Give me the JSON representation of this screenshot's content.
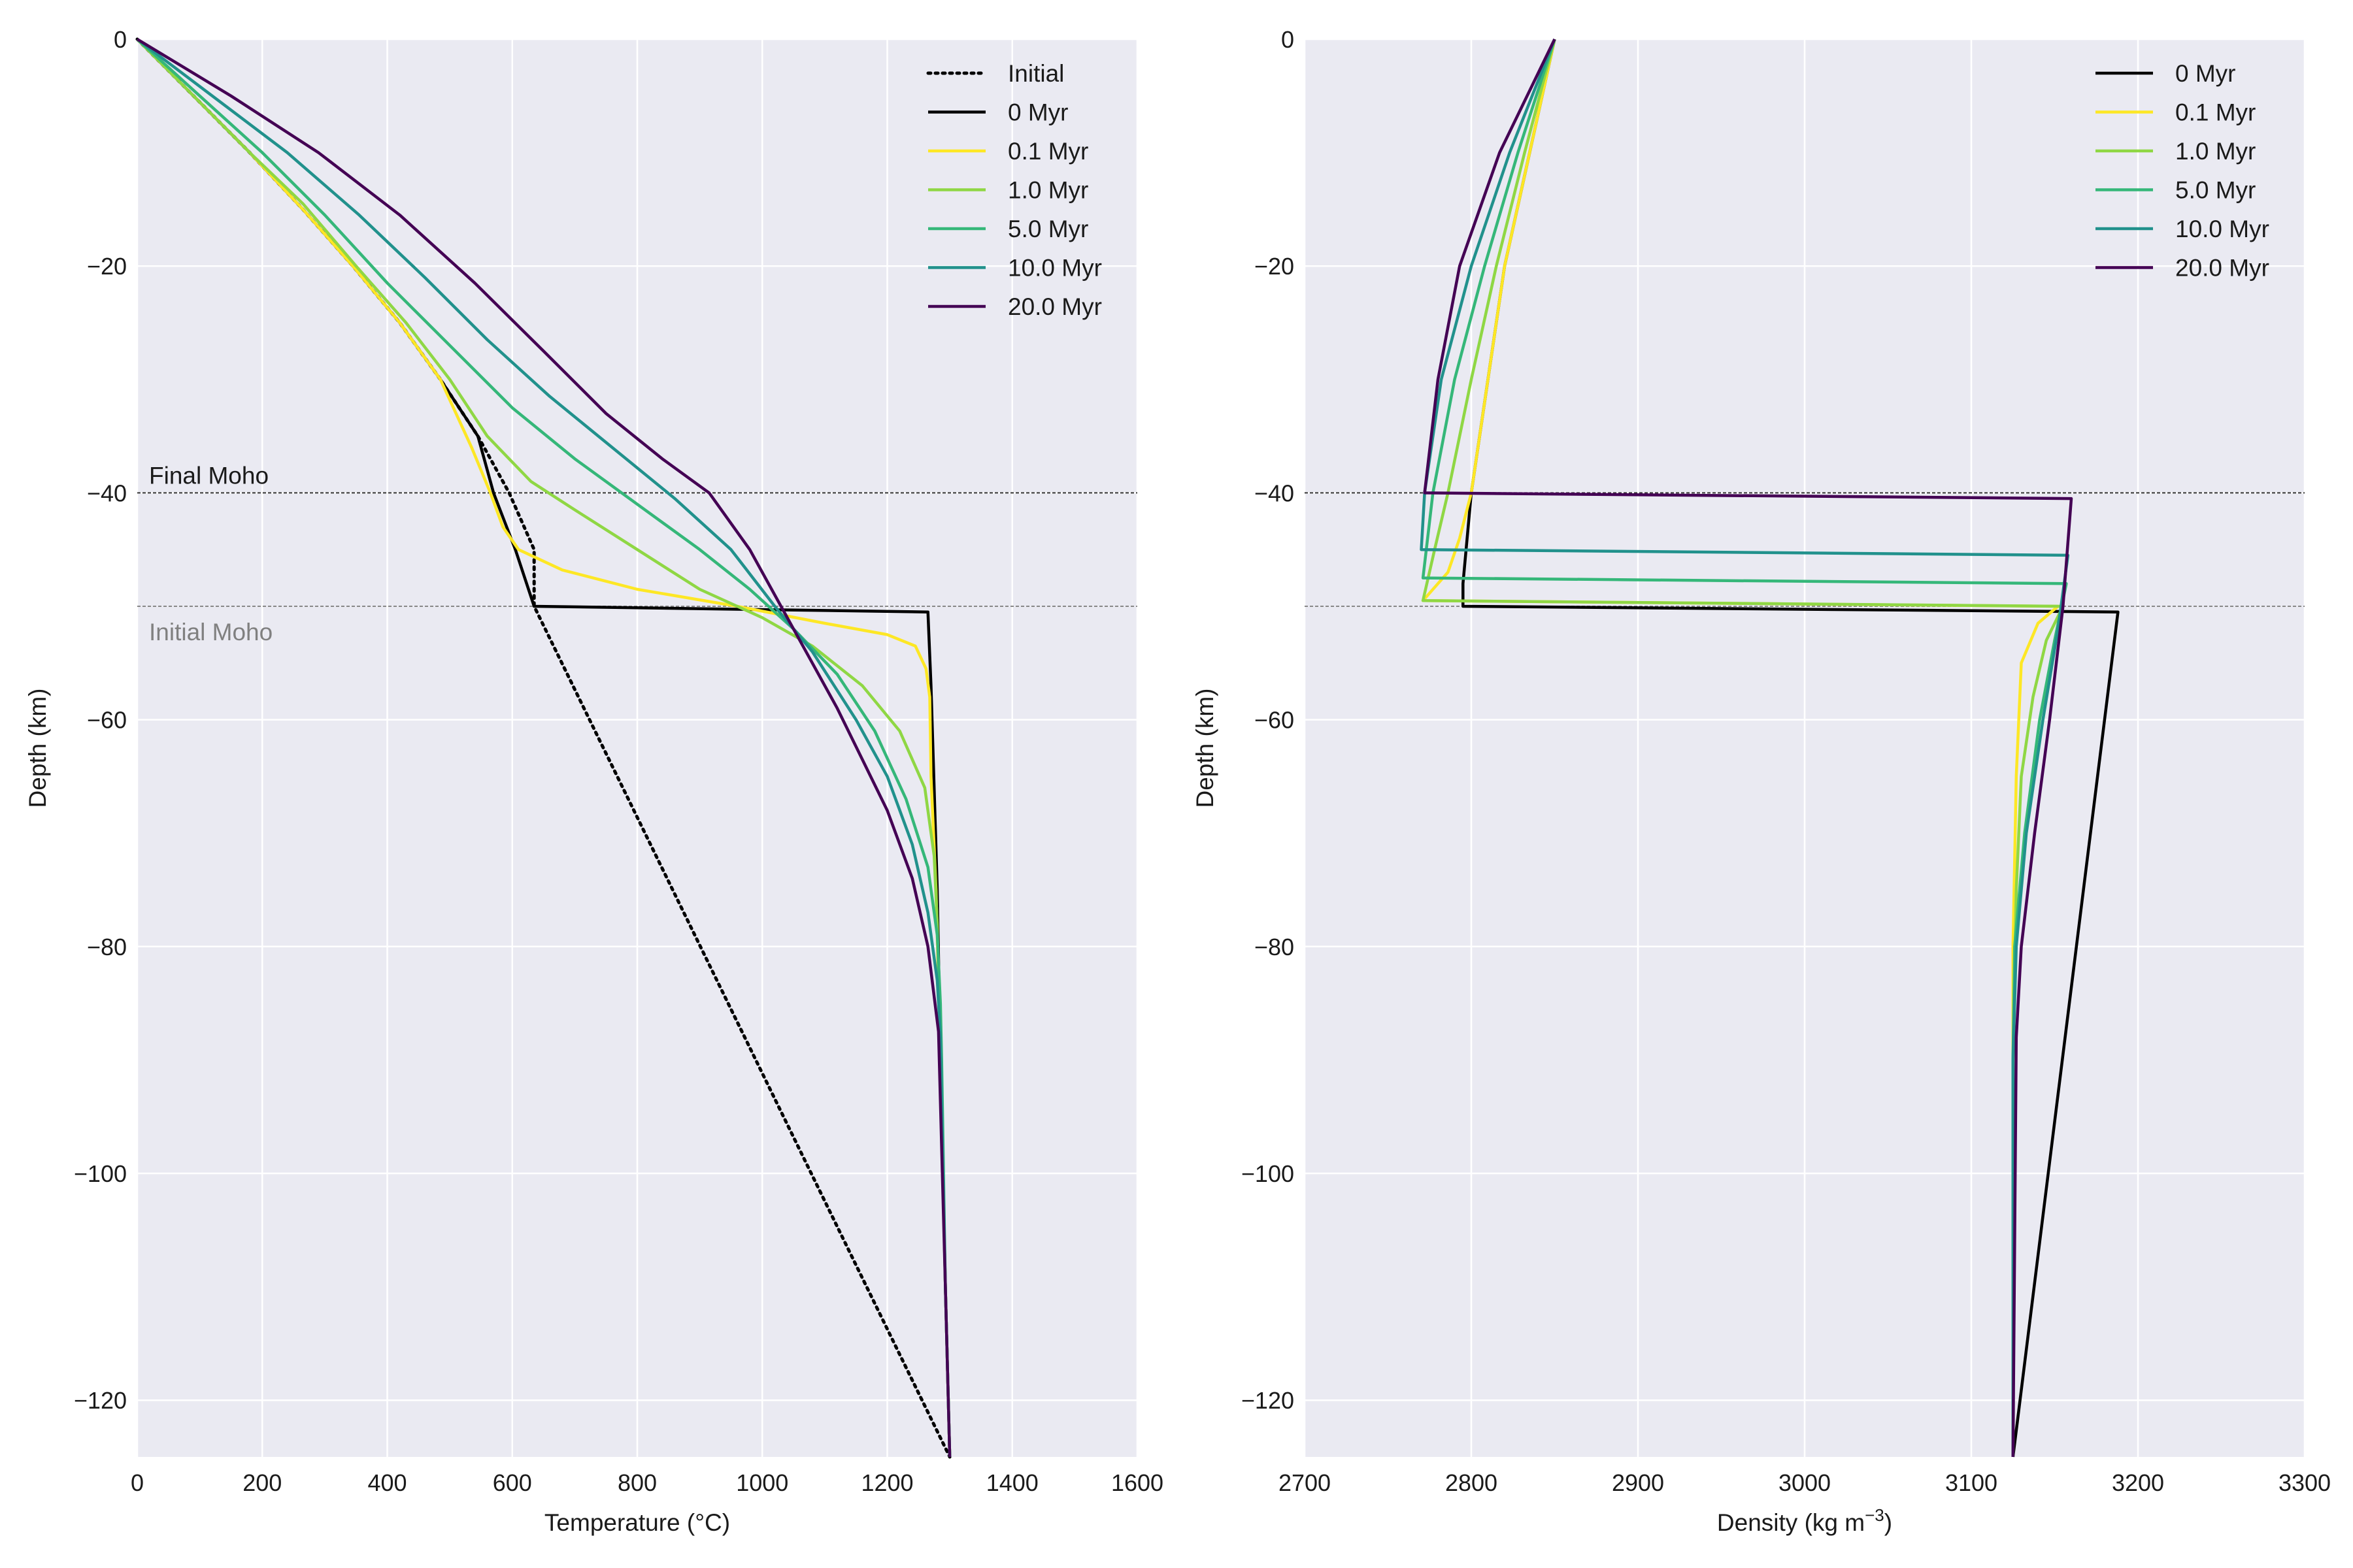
{
  "colors": {
    "panel_bg": "#eaeaf2",
    "grid": "#ffffff",
    "initial": "#000000",
    "t0": "#000000",
    "t01": "#fde725",
    "t1": "#8fd744",
    "t5": "#35b779",
    "t10": "#21918c",
    "t20": "#440154",
    "final_moho_line": "#333333",
    "initial_moho_line": "#888888",
    "final_moho_text": "#1a1a1a",
    "initial_moho_text": "#808080"
  },
  "chart_data": [
    {
      "type": "line",
      "xlabel": "Temperature (°C)",
      "ylabel": "Depth (km)",
      "xlim": [
        0,
        1600
      ],
      "ylim": [
        -125,
        0
      ],
      "xticks": [
        0,
        200,
        400,
        600,
        800,
        1000,
        1200,
        1400,
        1600
      ],
      "yticks": [
        0,
        -20,
        -40,
        -60,
        -80,
        -100,
        -120
      ],
      "grid": true,
      "legend_position": "top-right",
      "annotations": [
        {
          "text": "Final Moho",
          "depth": -40
        },
        {
          "text": "Initial Moho",
          "depth": -50
        }
      ],
      "series": [
        {
          "name": "Initial",
          "color_key": "initial",
          "dash": "dotted",
          "points": [
            [
              0,
              0
            ],
            [
              90,
              -5
            ],
            [
              180,
              -10
            ],
            [
              265,
              -15
            ],
            [
              345,
              -20
            ],
            [
              420,
              -25
            ],
            [
              485,
              -30
            ],
            [
              545,
              -35
            ],
            [
              595,
              -40
            ],
            [
              635,
              -45
            ],
            [
              635,
              -50
            ],
            [
              1300,
              -125
            ]
          ]
        },
        {
          "name": "0 Myr",
          "color_key": "t0",
          "dash": "solid",
          "points": [
            [
              0,
              0
            ],
            [
              90,
              -5
            ],
            [
              180,
              -10
            ],
            [
              265,
              -15
            ],
            [
              345,
              -20
            ],
            [
              420,
              -25
            ],
            [
              485,
              -30
            ],
            [
              545,
              -35
            ],
            [
              570,
              -40
            ],
            [
              605,
              -45
            ],
            [
              635,
              -50
            ],
            [
              1265,
              -50.5
            ],
            [
              1270,
              -57
            ],
            [
              1280,
              -75
            ],
            [
              1285,
              -90
            ],
            [
              1293,
              -110
            ],
            [
              1300,
              -125
            ]
          ]
        },
        {
          "name": "0.1 Myr",
          "color_key": "t01",
          "dash": "solid",
          "points": [
            [
              0,
              0
            ],
            [
              90,
              -5
            ],
            [
              180,
              -10
            ],
            [
              265,
              -15
            ],
            [
              345,
              -20
            ],
            [
              420,
              -25
            ],
            [
              485,
              -30
            ],
            [
              535,
              -36
            ],
            [
              565,
              -40
            ],
            [
              585,
              -43
            ],
            [
              610,
              -45
            ],
            [
              680,
              -46.8
            ],
            [
              800,
              -48.5
            ],
            [
              960,
              -50
            ],
            [
              1100,
              -51.5
            ],
            [
              1200,
              -52.5
            ],
            [
              1245,
              -53.5
            ],
            [
              1262,
              -55.5
            ],
            [
              1268,
              -58
            ],
            [
              1270,
              -65
            ],
            [
              1278,
              -75
            ],
            [
              1285,
              -90
            ],
            [
              1293,
              -110
            ],
            [
              1300,
              -125
            ]
          ]
        },
        {
          "name": "1.0 Myr",
          "color_key": "t1",
          "dash": "solid",
          "points": [
            [
              0,
              0
            ],
            [
              90,
              -5
            ],
            [
              180,
              -10
            ],
            [
              265,
              -14.5
            ],
            [
              350,
              -20
            ],
            [
              430,
              -25
            ],
            [
              500,
              -30
            ],
            [
              560,
              -35
            ],
            [
              630,
              -39
            ],
            [
              700,
              -41.5
            ],
            [
              800,
              -45
            ],
            [
              900,
              -48.5
            ],
            [
              1000,
              -51
            ],
            [
              1080,
              -53.5
            ],
            [
              1160,
              -57
            ],
            [
              1220,
              -61
            ],
            [
              1260,
              -66
            ],
            [
              1275,
              -72
            ],
            [
              1280,
              -78
            ],
            [
              1285,
              -90
            ],
            [
              1293,
              -110
            ],
            [
              1300,
              -125
            ]
          ]
        },
        {
          "name": "5.0 Myr",
          "color_key": "t5",
          "dash": "solid",
          "points": [
            [
              0,
              0
            ],
            [
              100,
              -5
            ],
            [
              200,
              -10
            ],
            [
              300,
              -15.5
            ],
            [
              400,
              -21.5
            ],
            [
              500,
              -27
            ],
            [
              600,
              -32.5
            ],
            [
              700,
              -37
            ],
            [
              800,
              -41
            ],
            [
              900,
              -45
            ],
            [
              980,
              -48.5
            ],
            [
              1050,
              -52
            ],
            [
              1120,
              -56
            ],
            [
              1180,
              -61
            ],
            [
              1230,
              -67
            ],
            [
              1265,
              -73
            ],
            [
              1280,
              -79
            ],
            [
              1285,
              -85
            ],
            [
              1287,
              -90
            ],
            [
              1293,
              -110
            ],
            [
              1300,
              -125
            ]
          ]
        },
        {
          "name": "10.0 Myr",
          "color_key": "t10",
          "dash": "solid",
          "points": [
            [
              0,
              0
            ],
            [
              120,
              -5
            ],
            [
              240,
              -10
            ],
            [
              355,
              -15.5
            ],
            [
              460,
              -21
            ],
            [
              560,
              -26.5
            ],
            [
              660,
              -31.5
            ],
            [
              760,
              -36
            ],
            [
              860,
              -40.5
            ],
            [
              950,
              -45
            ],
            [
              1020,
              -50
            ],
            [
              1080,
              -54
            ],
            [
              1150,
              -60
            ],
            [
              1200,
              -65
            ],
            [
              1240,
              -71
            ],
            [
              1265,
              -77
            ],
            [
              1280,
              -83
            ],
            [
              1285,
              -88
            ],
            [
              1293,
              -110
            ],
            [
              1300,
              -125
            ]
          ]
        },
        {
          "name": "20.0 Myr",
          "color_key": "t20",
          "dash": "solid",
          "points": [
            [
              0,
              0
            ],
            [
              150,
              -5
            ],
            [
              290,
              -10
            ],
            [
              420,
              -15.5
            ],
            [
              540,
              -21.5
            ],
            [
              650,
              -27.5
            ],
            [
              750,
              -33
            ],
            [
              840,
              -37
            ],
            [
              915,
              -40
            ],
            [
              980,
              -45
            ],
            [
              1030,
              -50
            ],
            [
              1080,
              -55
            ],
            [
              1120,
              -59
            ],
            [
              1160,
              -63.5
            ],
            [
              1200,
              -68
            ],
            [
              1240,
              -74
            ],
            [
              1265,
              -80
            ],
            [
              1282,
              -87.5
            ],
            [
              1293,
              -110
            ],
            [
              1300,
              -125
            ]
          ]
        }
      ]
    },
    {
      "type": "line",
      "xlabel": "Density (kg m",
      "xlabel_sup": "−3",
      "xlabel_end": ")",
      "ylabel": "Depth (km)",
      "xlim": [
        2700,
        3300
      ],
      "ylim": [
        -125,
        0
      ],
      "xticks": [
        2700,
        2800,
        2900,
        3000,
        3100,
        3200,
        3300
      ],
      "yticks": [
        0,
        -20,
        -40,
        -60,
        -80,
        -100,
        -120
      ],
      "grid": true,
      "legend_position": "top-right",
      "series": [
        {
          "name": "0 Myr",
          "color_key": "t0",
          "dash": "solid",
          "points": [
            [
              2850,
              0
            ],
            [
              2835,
              -10
            ],
            [
              2820,
              -20
            ],
            [
              2810,
              -30
            ],
            [
              2800,
              -40
            ],
            [
              2795,
              -48
            ],
            [
              2795,
              -50
            ],
            [
              3188,
              -50.5
            ],
            [
              3125,
              -125
            ]
          ]
        },
        {
          "name": "0.1 Myr",
          "color_key": "t01",
          "dash": "solid",
          "points": [
            [
              2850,
              0
            ],
            [
              2835,
              -10
            ],
            [
              2820,
              -20
            ],
            [
              2810,
              -30
            ],
            [
              2800,
              -40
            ],
            [
              2793,
              -44
            ],
            [
              2786,
              -47
            ],
            [
              2771,
              -49.5
            ],
            [
              3152,
              -50
            ],
            [
              3140,
              -51.5
            ],
            [
              3130,
              -55
            ],
            [
              3127,
              -65
            ],
            [
              3125,
              -80
            ],
            [
              3125,
              -125
            ]
          ]
        },
        {
          "name": "1.0 Myr",
          "color_key": "t1",
          "dash": "solid",
          "points": [
            [
              2850,
              0
            ],
            [
              2832,
              -10
            ],
            [
              2815,
              -20
            ],
            [
              2800,
              -30
            ],
            [
              2786,
              -40
            ],
            [
              2778,
              -45
            ],
            [
              2771,
              -49.5
            ],
            [
              3155,
              -50
            ],
            [
              3145,
              -53
            ],
            [
              3137,
              -58
            ],
            [
              3130,
              -65
            ],
            [
              3127,
              -75
            ],
            [
              3125,
              -90
            ],
            [
              3125,
              -125
            ]
          ]
        },
        {
          "name": "5.0 Myr",
          "color_key": "t5",
          "dash": "solid",
          "points": [
            [
              2850,
              0
            ],
            [
              2828,
              -10
            ],
            [
              2808,
              -20
            ],
            [
              2790,
              -30
            ],
            [
              2777,
              -40
            ],
            [
              2771,
              -47.5
            ],
            [
              3157,
              -48
            ],
            [
              3150,
              -53
            ],
            [
              3141,
              -60
            ],
            [
              3132,
              -70
            ],
            [
              3126,
              -80
            ],
            [
              3125,
              -90
            ],
            [
              3125,
              -125
            ]
          ]
        },
        {
          "name": "10.0 Myr",
          "color_key": "t10",
          "dash": "solid",
          "points": [
            [
              2850,
              0
            ],
            [
              2823,
              -10
            ],
            [
              2800,
              -20
            ],
            [
              2782,
              -30
            ],
            [
              2772,
              -40
            ],
            [
              2770,
              -45
            ],
            [
              3158,
              -45.5
            ],
            [
              3152,
              -52
            ],
            [
              3143,
              -60
            ],
            [
              3133,
              -70
            ],
            [
              3127,
              -80
            ],
            [
              3125,
              -90
            ],
            [
              3125,
              -125
            ]
          ]
        },
        {
          "name": "20.0 Myr",
          "color_key": "t20",
          "dash": "solid",
          "points": [
            [
              2850,
              0
            ],
            [
              2817,
              -10
            ],
            [
              2793,
              -20
            ],
            [
              2780,
              -30
            ],
            [
              2772,
              -40
            ],
            [
              3160,
              -40.5
            ],
            [
              3155,
              -50
            ],
            [
              3147,
              -60
            ],
            [
              3138,
              -70
            ],
            [
              3130,
              -80
            ],
            [
              3127,
              -88
            ],
            [
              3125,
              -125
            ]
          ]
        }
      ]
    }
  ]
}
